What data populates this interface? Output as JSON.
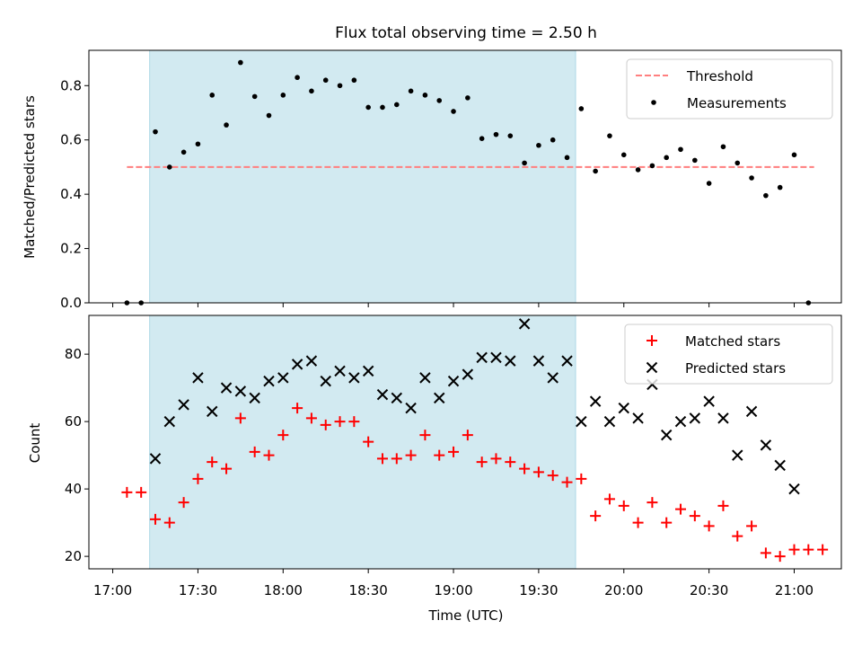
{
  "chart_data": [
    {
      "type": "scatter",
      "title": "Flux total observing time = 2.50 h",
      "xlabel": "",
      "ylabel": "Matched/Predicted stars",
      "ylim": [
        0,
        0.93
      ],
      "yticks": [
        0.0,
        0.2,
        0.4,
        0.6,
        0.8
      ],
      "ytick_labels": [
        "0.0",
        "0.2",
        "0.4",
        "0.6",
        "0.8"
      ],
      "x_unit": "minutes after 17:00 UTC",
      "shaded_interval": [
        "17:13",
        "19:43"
      ],
      "shaded_color": "#add8e6",
      "threshold": {
        "name": "Threshold",
        "y": 0.5,
        "x": [
          "17:05",
          "21:07"
        ],
        "color": "#ff7f7f",
        "style": "dashed"
      },
      "series": [
        {
          "name": "Measurements",
          "color": "#000000",
          "marker": "dot",
          "x": [
            "17:05",
            "17:10",
            "17:15",
            "17:20",
            "17:25",
            "17:30",
            "17:35",
            "17:40",
            "17:45",
            "17:50",
            "17:55",
            "18:00",
            "18:05",
            "18:10",
            "18:15",
            "18:20",
            "18:25",
            "18:30",
            "18:35",
            "18:40",
            "18:45",
            "18:50",
            "18:55",
            "19:00",
            "19:05",
            "19:10",
            "19:15",
            "19:20",
            "19:25",
            "19:30",
            "19:35",
            "19:40",
            "19:45",
            "19:50",
            "19:55",
            "20:00",
            "20:05",
            "20:10",
            "20:15",
            "20:20",
            "20:25",
            "20:30",
            "20:35",
            "20:40",
            "20:45",
            "20:50",
            "20:55",
            "21:00",
            "21:05"
          ],
          "y": [
            0.0,
            0.0,
            0.63,
            0.5,
            0.555,
            0.585,
            0.765,
            0.655,
            0.885,
            0.76,
            0.69,
            0.765,
            0.83,
            0.78,
            0.82,
            0.8,
            0.82,
            0.72,
            0.72,
            0.73,
            0.78,
            0.765,
            0.745,
            0.705,
            0.755,
            0.605,
            0.62,
            0.615,
            0.515,
            0.58,
            0.6,
            0.535,
            0.715,
            0.485,
            0.615,
            0.545,
            0.49,
            0.505,
            0.535,
            0.565,
            0.525,
            0.44,
            0.575,
            0.515,
            0.46,
            0.395,
            0.425,
            0.545,
            0.0
          ]
        }
      ]
    },
    {
      "type": "scatter",
      "title": "",
      "xlabel": "Time (UTC)",
      "ylabel": "Count",
      "ylim": [
        16.3,
        91.5
      ],
      "yticks": [
        20,
        40,
        60,
        80
      ],
      "ytick_labels": [
        "20",
        "40",
        "60",
        "80"
      ],
      "xticks": [
        "17:00",
        "17:30",
        "18:00",
        "18:30",
        "19:00",
        "19:30",
        "20:00",
        "20:30",
        "21:00"
      ],
      "shaded_interval": [
        "17:13",
        "19:43"
      ],
      "shaded_color": "#add8e6",
      "series": [
        {
          "name": "Matched stars",
          "color": "#ff0000",
          "marker": "plus",
          "x": [
            "17:05",
            "17:10",
            "17:15",
            "17:20",
            "17:25",
            "17:30",
            "17:35",
            "17:40",
            "17:45",
            "17:50",
            "17:55",
            "18:00",
            "18:05",
            "18:10",
            "18:15",
            "18:20",
            "18:25",
            "18:30",
            "18:35",
            "18:40",
            "18:45",
            "18:50",
            "18:55",
            "19:00",
            "19:05",
            "19:10",
            "19:15",
            "19:20",
            "19:25",
            "19:30",
            "19:35",
            "19:40",
            "19:45",
            "19:50",
            "19:55",
            "20:00",
            "20:05",
            "20:10",
            "20:15",
            "20:20",
            "20:25",
            "20:30",
            "20:35",
            "20:40",
            "20:45",
            "20:50",
            "20:55",
            "21:00",
            "21:05",
            "21:10"
          ],
          "y": [
            39,
            39,
            31,
            30,
            36,
            43,
            48,
            46,
            61,
            51,
            50,
            56,
            64,
            61,
            59,
            60,
            60,
            54,
            49,
            49,
            50,
            56,
            50,
            51,
            56,
            48,
            49,
            48,
            46,
            45,
            44,
            42,
            43,
            32,
            37,
            35,
            30,
            36,
            30,
            34,
            32,
            29,
            35,
            26,
            29,
            21,
            20,
            22,
            22,
            22
          ]
        },
        {
          "name": "Predicted stars",
          "color": "#000000",
          "marker": "x",
          "x": [
            "17:15",
            "17:20",
            "17:25",
            "17:30",
            "17:35",
            "17:40",
            "17:45",
            "17:50",
            "17:55",
            "18:00",
            "18:05",
            "18:10",
            "18:15",
            "18:20",
            "18:25",
            "18:30",
            "18:35",
            "18:40",
            "18:45",
            "18:50",
            "18:55",
            "19:00",
            "19:05",
            "19:10",
            "19:15",
            "19:20",
            "19:25",
            "19:30",
            "19:35",
            "19:40",
            "19:45",
            "19:50",
            "19:55",
            "20:00",
            "20:05",
            "20:10",
            "20:15",
            "20:20",
            "20:25",
            "20:30",
            "20:35",
            "20:40",
            "20:45",
            "20:50",
            "20:55",
            "21:00"
          ],
          "y": [
            49,
            60,
            65,
            73,
            63,
            70,
            69,
            67,
            72,
            73,
            77,
            78,
            72,
            75,
            73,
            75,
            68,
            67,
            64,
            73,
            67,
            72,
            74,
            79,
            79,
            78,
            89,
            78,
            73,
            78,
            60,
            66,
            60,
            64,
            61,
            71,
            56,
            60,
            61,
            66,
            61,
            50,
            63,
            53,
            47,
            40
          ]
        }
      ]
    }
  ]
}
